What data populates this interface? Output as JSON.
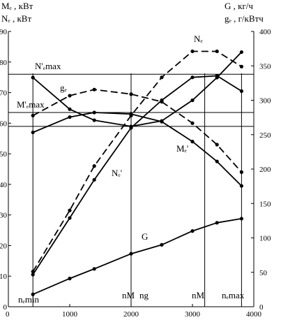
{
  "chart_data": {
    "type": "line",
    "x_ticks": [
      0,
      1000,
      2000,
      3000,
      4000
    ],
    "xlim": [
      0,
      4000
    ],
    "left_axis": {
      "label_lines": [
        "Mₑ , кВт",
        "Nₑ , кВт"
      ],
      "ticks": [
        0,
        10,
        20,
        30,
        40,
        50,
        60,
        70,
        80,
        90
      ],
      "ylim": [
        0,
        90
      ]
    },
    "right_axis": {
      "label_lines": [
        "G , кг/ч",
        "gₑ , г/кВтч"
      ],
      "ticks": [
        0,
        50,
        100,
        150,
        200,
        250,
        300,
        350,
        400
      ],
      "ylim": [
        0,
        400
      ]
    },
    "series": [
      {
        "name": "Nₑ",
        "axis": "left",
        "style": "dashed",
        "x": [
          400,
          1000,
          1400,
          2000,
          2500,
          3000,
          3400,
          3800
        ],
        "y": [
          11.5,
          31.5,
          46,
          62.5,
          75,
          83.5,
          83.5,
          78.5
        ]
      },
      {
        "name": "Nₑ'",
        "axis": "left",
        "style": "solid",
        "x": [
          400,
          1000,
          1400,
          2000,
          2500,
          3000,
          3400,
          3800
        ],
        "y": [
          10.5,
          29,
          41.5,
          58.5,
          67.5,
          75,
          75.5,
          70.5
        ]
      },
      {
        "name": "Mₑ",
        "axis": "left",
        "style": "dashed",
        "x": [
          400,
          1000,
          1400,
          2000,
          2500,
          3000,
          3400,
          3800
        ],
        "y": [
          62.5,
          69,
          71,
          69.5,
          67,
          60,
          53,
          44
        ]
      },
      {
        "name": "Mₑ'",
        "axis": "left",
        "style": "solid",
        "x": [
          400,
          1000,
          1400,
          2000,
          2500,
          3000,
          3400,
          3800
        ],
        "y": [
          57,
          62,
          63.5,
          63,
          60.5,
          54,
          47.5,
          39.5
        ]
      },
      {
        "name": "gₑ",
        "axis": "right",
        "style": "solid",
        "x": [
          400,
          1000,
          1400,
          2000,
          2500,
          3000,
          3400,
          3800
        ],
        "y": [
          333,
          287,
          271,
          262,
          270,
          300,
          333,
          370
        ]
      },
      {
        "name": "G",
        "axis": "right",
        "style": "solid",
        "x": [
          400,
          1000,
          1400,
          2000,
          2500,
          3000,
          3400,
          3800
        ],
        "y": [
          18,
          41,
          55,
          77,
          90,
          110,
          122,
          128
        ]
      }
    ],
    "reference_lines": {
      "horizontal": [
        {
          "axis": "left",
          "y": 76,
          "label": "N'ₑmax"
        },
        {
          "axis": "left",
          "y": 63.5,
          "label": "M'ₑmax"
        },
        {
          "axis": "right",
          "y": 262
        }
      ],
      "vertical": [
        {
          "x": 400,
          "label": "nₑmin"
        },
        {
          "x": 2000,
          "label": "nM"
        },
        {
          "x": 2000,
          "label": "ng"
        },
        {
          "x": 3200,
          "label": "nM"
        },
        {
          "x": 3800,
          "label": "nₑmax"
        }
      ]
    }
  }
}
